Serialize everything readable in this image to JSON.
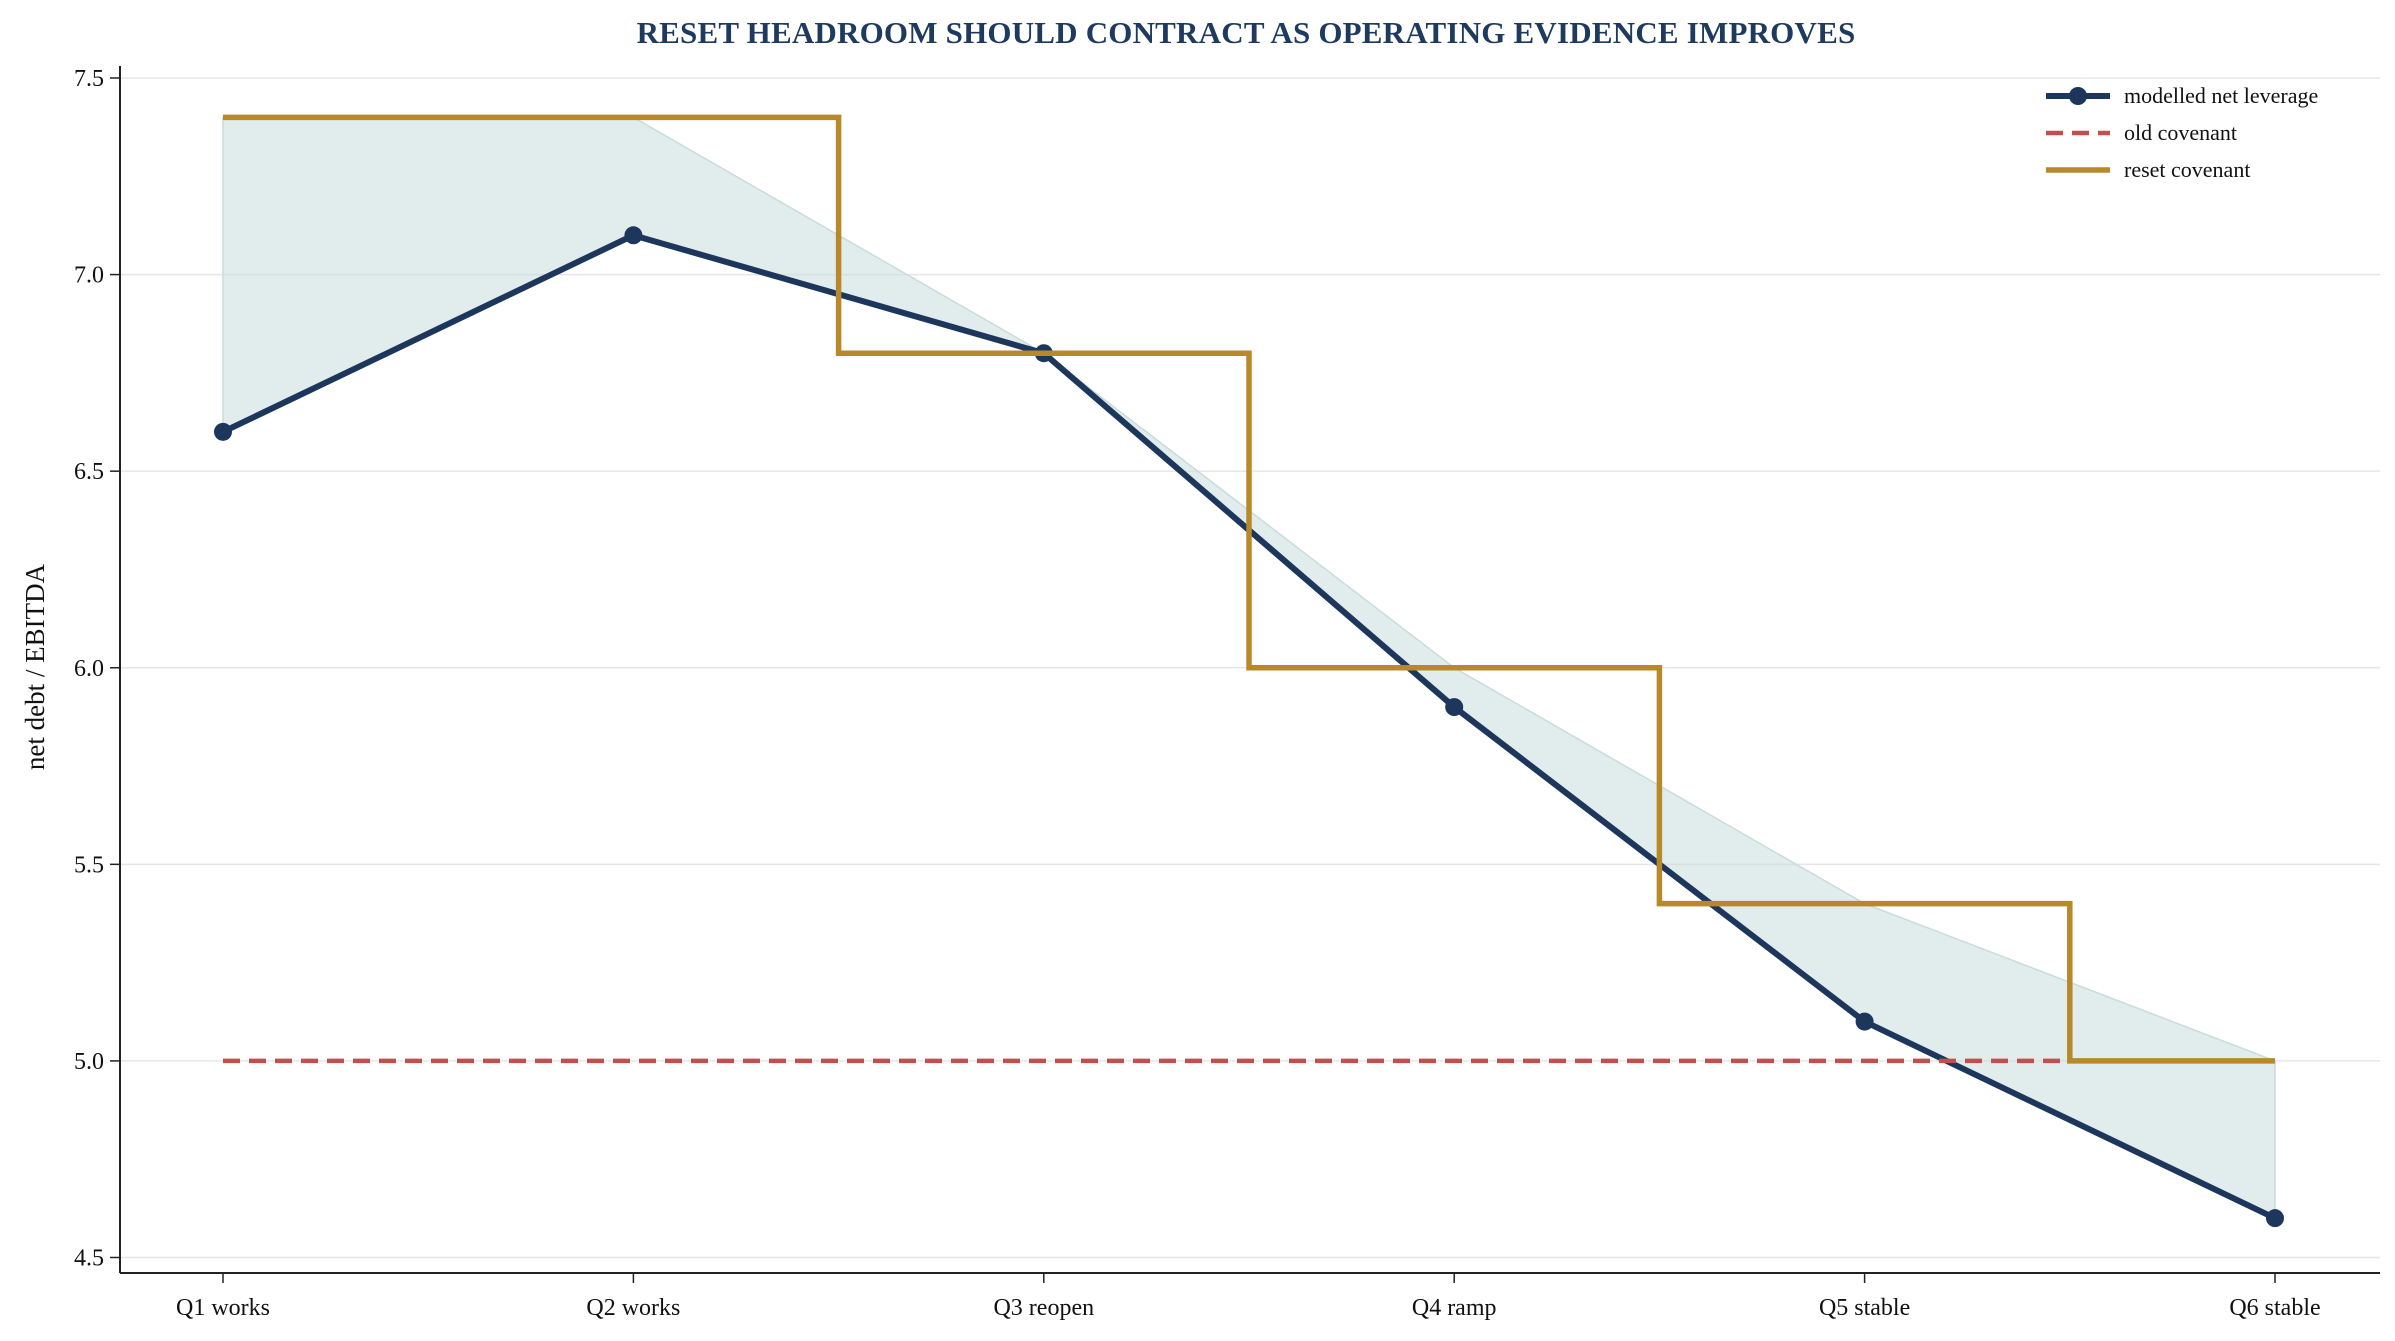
{
  "chart_data": {
    "type": "line",
    "title": "RESET HEADROOM SHOULD CONTRACT AS OPERATING EVIDENCE IMPROVES",
    "xlabel": "",
    "ylabel": "net debt / EBITDA",
    "categories": [
      "Q1 works",
      "Q2 works",
      "Q3 reopen",
      "Q4 ramp",
      "Q5 stable",
      "Q6 stable"
    ],
    "ylim": [
      4.48,
      7.55
    ],
    "yticks": [
      "4.5",
      "5.0",
      "5.5",
      "6.0",
      "6.5",
      "7.0",
      "7.5"
    ],
    "grid": "horizontal",
    "legend_position": "top-right",
    "series": [
      {
        "name": "modelled net leverage",
        "style": "line-with-markers",
        "color": "#1c365c",
        "values": [
          6.6,
          7.1,
          6.8,
          5.9,
          5.1,
          4.6
        ]
      },
      {
        "name": "old covenant",
        "style": "dashed",
        "color": "#c0504d",
        "values": [
          5.0,
          5.0,
          5.0,
          5.0,
          5.0,
          5.0
        ]
      },
      {
        "name": "reset covenant",
        "style": "step-mid",
        "color": "#b8892a",
        "values": [
          7.4,
          7.4,
          6.8,
          6.0,
          5.4,
          5.0
        ]
      }
    ],
    "fill_between": {
      "upper": "reset covenant",
      "lower": "modelled net leverage",
      "color": "#c9dcdc"
    }
  },
  "colors": {
    "title": "#1e3a5f",
    "grid": "#e6e6e6",
    "axis": "#222222"
  }
}
